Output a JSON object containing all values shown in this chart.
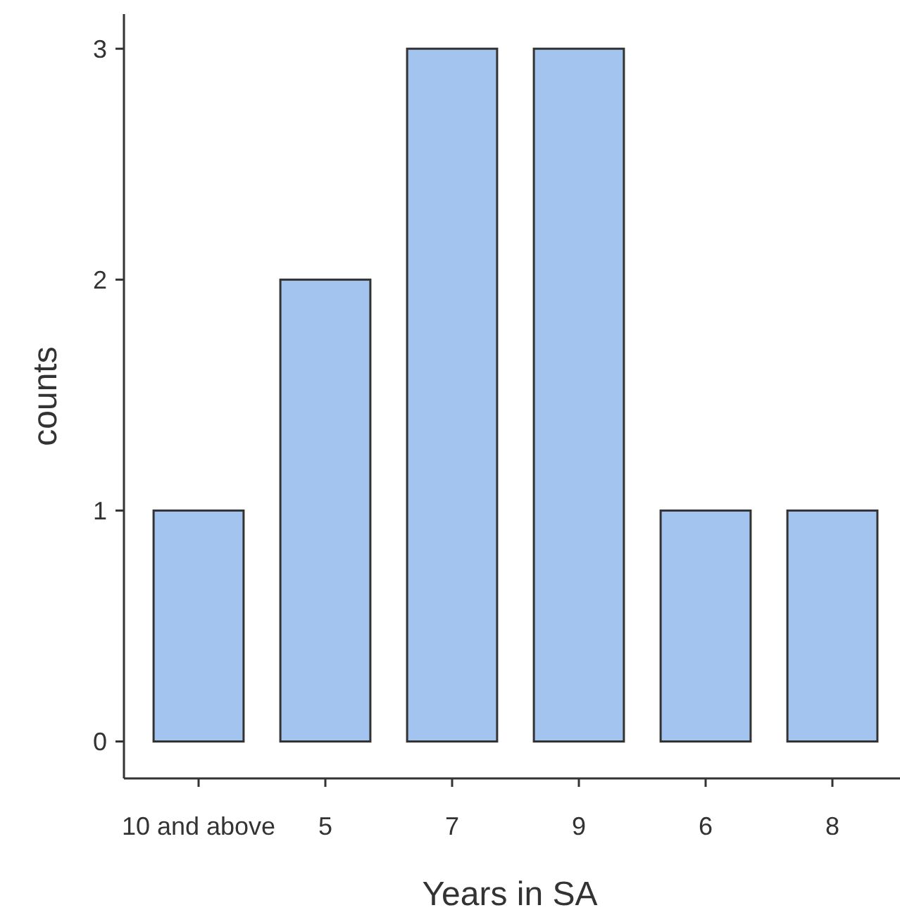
{
  "chart_data": {
    "type": "bar",
    "xlabel": "Years in SA",
    "ylabel": "counts",
    "categories": [
      "10 and above",
      "5",
      "7",
      "9",
      "6",
      "8"
    ],
    "values": [
      1,
      2,
      3,
      3,
      1,
      1
    ],
    "color": "#a4c4f0",
    "ylim": [
      -0.16,
      3.15
    ],
    "yticks": [
      0,
      1,
      2,
      3
    ],
    "grid": false
  }
}
